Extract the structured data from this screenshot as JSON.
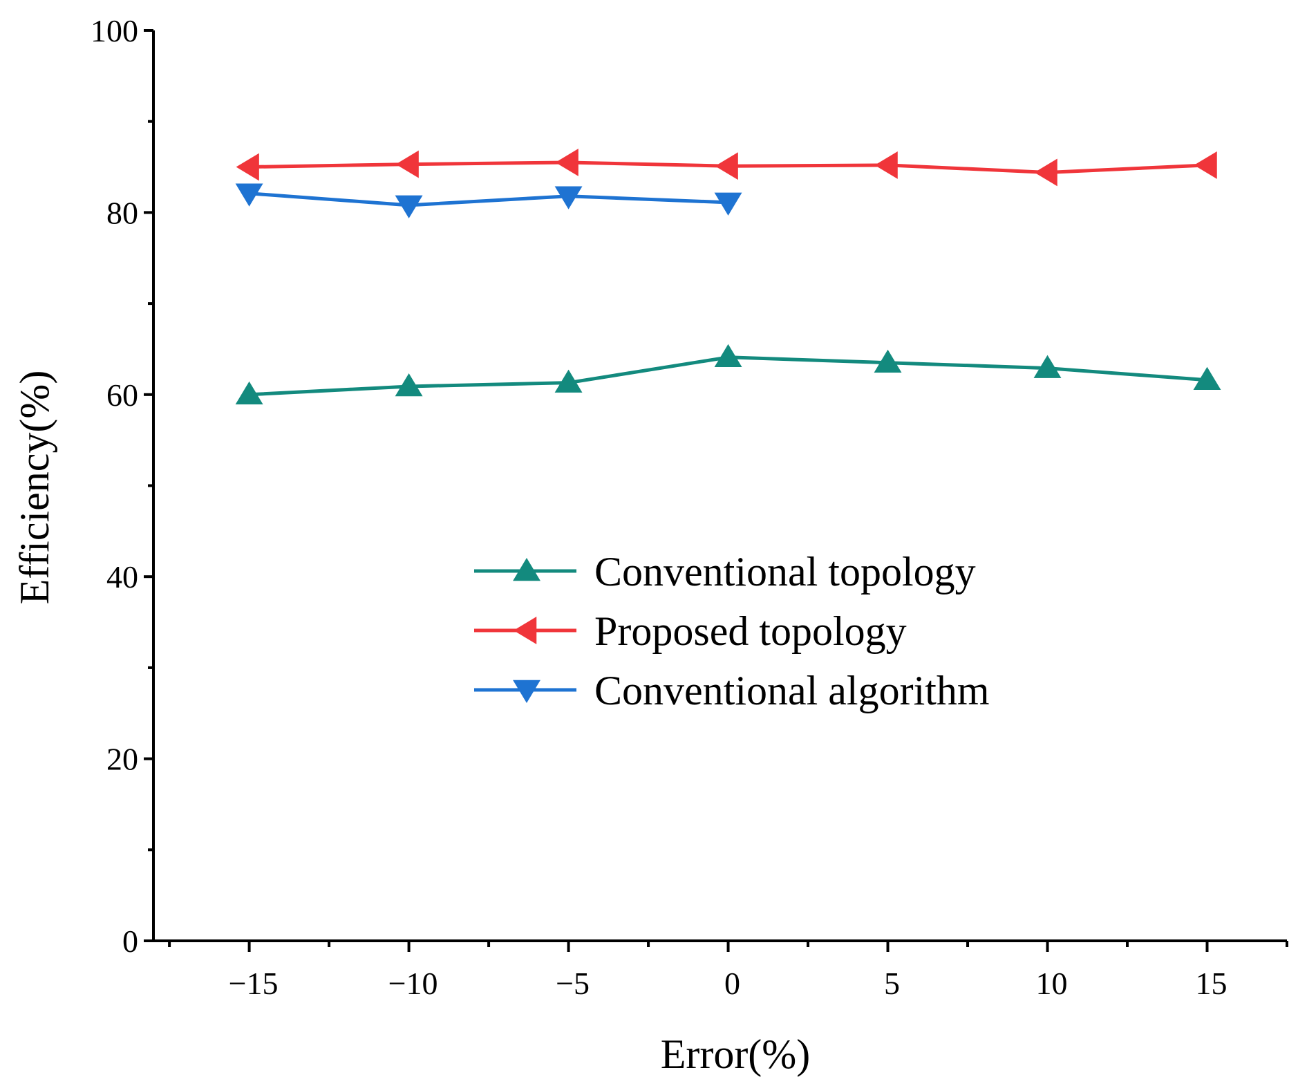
{
  "chart_data": {
    "type": "line",
    "title": "",
    "xlabel": "Error(%)",
    "ylabel": "Efficiency(%)",
    "xlim": [
      -18,
      17.5
    ],
    "ylim": [
      0,
      100
    ],
    "x_ticks": [
      {
        "value": -15,
        "label": "−15"
      },
      {
        "value": -10,
        "label": "−10"
      },
      {
        "value": -5,
        "label": "−5"
      },
      {
        "value": 0,
        "label": "0"
      },
      {
        "value": 5,
        "label": "5"
      },
      {
        "value": 10,
        "label": "10"
      },
      {
        "value": 15,
        "label": "15"
      }
    ],
    "x_minor_ticks": [
      -17.5,
      -12.5,
      -7.5,
      -2.5,
      2.5,
      7.5,
      12.5,
      17.5
    ],
    "y_ticks": [
      {
        "value": 0,
        "label": "0"
      },
      {
        "value": 20,
        "label": "20"
      },
      {
        "value": 40,
        "label": "40"
      },
      {
        "value": 60,
        "label": "60"
      },
      {
        "value": 80,
        "label": "80"
      },
      {
        "value": 100,
        "label": "100"
      }
    ],
    "y_minor_ticks": [
      10,
      30,
      50,
      70,
      90
    ],
    "grid": false,
    "legend_position": "center-right",
    "series": [
      {
        "name": "Conventional topology",
        "color": "#138a7e",
        "marker": "triangle-up",
        "x": [
          -15,
          -10,
          -5,
          0,
          5,
          10,
          15
        ],
        "values": [
          60.0,
          60.9,
          61.3,
          64.1,
          63.5,
          62.9,
          61.6
        ]
      },
      {
        "name": "Proposed topology",
        "color": "#f0353a",
        "marker": "triangle-left",
        "x": [
          -15,
          -10,
          -5,
          0,
          5,
          10,
          15
        ],
        "values": [
          85.0,
          85.3,
          85.5,
          85.1,
          85.2,
          84.4,
          85.2
        ]
      },
      {
        "name": "Conventional algorithm",
        "color": "#1e73d2",
        "marker": "triangle-down",
        "x": [
          -15,
          -10,
          -5,
          0
        ],
        "values": [
          82.1,
          80.8,
          81.8,
          81.1
        ]
      }
    ]
  }
}
